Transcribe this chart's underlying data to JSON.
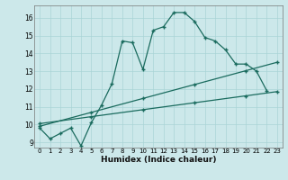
{
  "xlabel": "Humidex (Indice chaleur)",
  "bg_color": "#cce8ea",
  "line_color": "#1a6b5e",
  "grid_color": "#aad4d6",
  "xlim": [
    -0.5,
    23.5
  ],
  "ylim": [
    8.7,
    16.7
  ],
  "yticks": [
    9,
    10,
    11,
    12,
    13,
    14,
    15,
    16
  ],
  "xticks": [
    0,
    1,
    2,
    3,
    4,
    5,
    6,
    7,
    8,
    9,
    10,
    11,
    12,
    13,
    14,
    15,
    16,
    17,
    18,
    19,
    20,
    21,
    22,
    23
  ],
  "line1_x": [
    0,
    1,
    2,
    3,
    4,
    5,
    6,
    7,
    8,
    9,
    10,
    11,
    12,
    13,
    14,
    15,
    16,
    17,
    18,
    19,
    20,
    21,
    22
  ],
  "line1_y": [
    9.8,
    9.2,
    9.5,
    9.8,
    8.8,
    10.1,
    11.1,
    12.3,
    14.7,
    14.6,
    13.1,
    15.3,
    15.5,
    16.3,
    16.3,
    15.8,
    14.9,
    14.7,
    14.2,
    13.4,
    13.4,
    13.0,
    11.9
  ],
  "line2_x": [
    0,
    23
  ],
  "line2_y": [
    9.9,
    13.5
  ],
  "line3_x": [
    0,
    23
  ],
  "line3_y": [
    10.05,
    11.85
  ],
  "line2_markers_x": [
    0,
    5,
    10,
    15,
    20,
    23
  ],
  "line2_markers_y": [
    9.9,
    10.68,
    11.46,
    12.24,
    13.02,
    13.5
  ],
  "line3_markers_x": [
    0,
    5,
    10,
    15,
    20,
    23
  ],
  "line3_markers_y": [
    10.05,
    10.44,
    10.83,
    11.22,
    11.61,
    11.85
  ]
}
